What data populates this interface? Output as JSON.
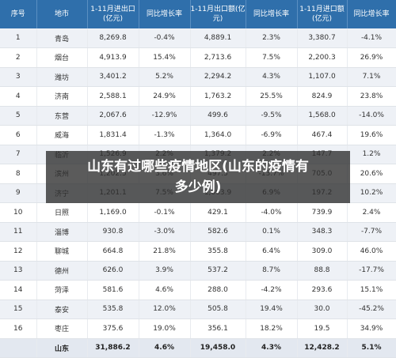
{
  "headers": [
    "序号",
    "地市",
    "1-11月进出口(亿元)",
    "同比增长率",
    "1-11月出口额(亿元)",
    "同比增长率",
    "1-11月进口额(亿元)",
    "同比增长率"
  ],
  "rows": [
    [
      "1",
      "青岛",
      "8,269.8",
      "-0.4%",
      "4,889.1",
      "2.3%",
      "3,380.7",
      "-4.1%"
    ],
    [
      "2",
      "烟台",
      "4,913.9",
      "15.4%",
      "2,713.6",
      "7.5%",
      "2,200.3",
      "26.9%"
    ],
    [
      "3",
      "潍坊",
      "3,401.2",
      "5.2%",
      "2,294.2",
      "4.3%",
      "1,107.0",
      "7.1%"
    ],
    [
      "4",
      "济南",
      "2,588.1",
      "24.9%",
      "1,763.2",
      "25.5%",
      "824.9",
      "23.8%"
    ],
    [
      "5",
      "东营",
      "2,067.6",
      "-12.9%",
      "499.6",
      "-9.5%",
      "1,568.0",
      "-14.0%"
    ],
    [
      "6",
      "威海",
      "1,831.4",
      "-1.3%",
      "1,364.0",
      "-6.9%",
      "467.4",
      "19.6%"
    ],
    [
      "7",
      "临沂",
      "1,526.9",
      "2.2%",
      "1,379.2",
      "2.2%",
      "147.7",
      "1.2%"
    ],
    [
      "8",
      "滨州",
      "1,202.5",
      "3.6%",
      "497.5",
      "-13.7%",
      "705.0",
      "20.6%"
    ],
    [
      "9",
      "济宁",
      "1,201.1",
      "7.5%",
      "1,003.9",
      "6.9%",
      "197.2",
      "10.2%"
    ],
    [
      "10",
      "日照",
      "1,169.0",
      "-0.1%",
      "429.1",
      "-4.0%",
      "739.9",
      "2.4%"
    ],
    [
      "11",
      "淄博",
      "930.8",
      "-3.0%",
      "582.6",
      "0.1%",
      "348.3",
      "-7.7%"
    ],
    [
      "12",
      "聊城",
      "664.8",
      "21.8%",
      "355.8",
      "6.4%",
      "309.0",
      "46.0%"
    ],
    [
      "13",
      "德州",
      "626.0",
      "3.9%",
      "537.2",
      "8.7%",
      "88.8",
      "-17.7%"
    ],
    [
      "14",
      "菏泽",
      "581.6",
      "4.6%",
      "288.0",
      "-4.2%",
      "293.6",
      "15.1%"
    ],
    [
      "15",
      "泰安",
      "535.8",
      "12.0%",
      "505.8",
      "19.4%",
      "30.0",
      "-45.2%"
    ],
    [
      "16",
      "枣庄",
      "375.6",
      "19.0%",
      "356.1",
      "18.2%",
      "19.5",
      "34.9%"
    ]
  ],
  "total": [
    "",
    "山东",
    "31,886.2",
    "4.6%",
    "19,458.0",
    "4.3%",
    "12,428.2",
    "5.1%"
  ],
  "banner": {
    "line1": "山东有过哪些疫情地区(山东的疫情有",
    "line2": "多少例)"
  }
}
